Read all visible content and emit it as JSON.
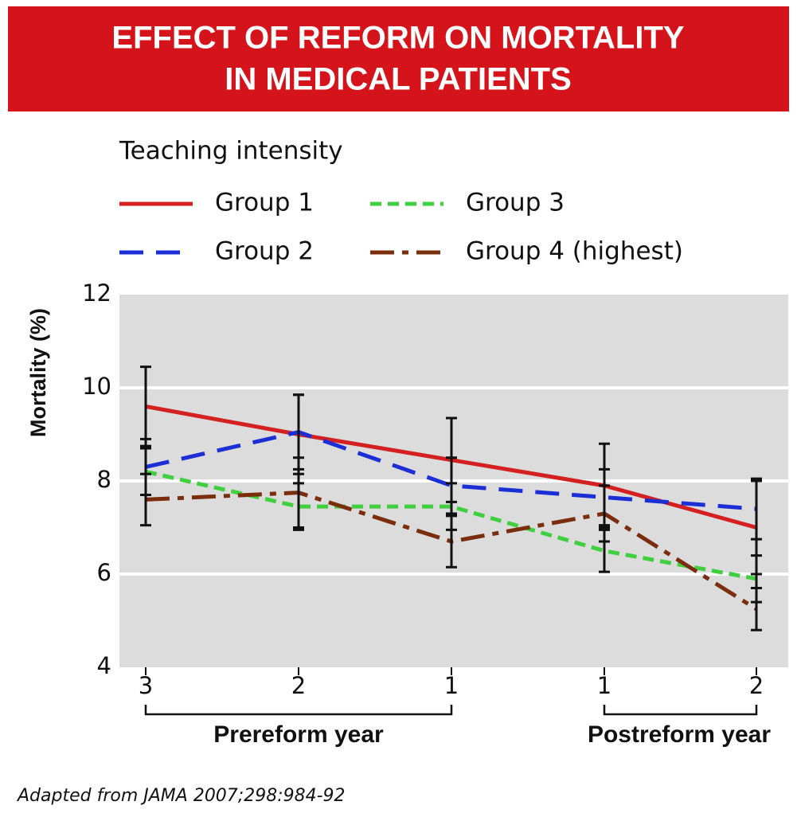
{
  "chart_data": {
    "type": "line",
    "title": [
      "EFFECT OF REFORM ON MORTALITY",
      "IN MEDICAL PATIENTS"
    ],
    "legend_title": "Teaching intensity",
    "y_label": "Mortality (%)",
    "categories": [
      "3",
      "2",
      "1",
      "1",
      "2"
    ],
    "x_groups": [
      "Prereform year",
      "Postreform year"
    ],
    "source": "Adapted from JAMA 2007;298:984-92",
    "ylim": [
      4,
      12
    ],
    "yticks": [
      4,
      6,
      8,
      10,
      12
    ],
    "grid": true,
    "series": [
      {
        "name": "Group 1",
        "color": "#d42020",
        "values": [
          9.6,
          9.0,
          8.45,
          7.9,
          7.0
        ],
        "errors": [
          0.85,
          0.85,
          0.9,
          0.9,
          1.0
        ]
      },
      {
        "name": "Group 2",
        "color": "#1c2fd6",
        "values": [
          8.3,
          9.05,
          7.9,
          7.65,
          7.4
        ],
        "errors": [
          0.6,
          0.8,
          0.6,
          0.6,
          0.65
        ]
      },
      {
        "name": "Group 3",
        "color": "#3fcf3f",
        "values": [
          8.2,
          7.45,
          7.45,
          6.5,
          5.9
        ],
        "errors": [
          0.5,
          0.5,
          0.5,
          0.45,
          0.5
        ]
      },
      {
        "name": "Group 4 (highest)",
        "color": "#7a2e0e",
        "values": [
          7.6,
          7.75,
          6.7,
          7.3,
          5.25
        ],
        "errors": [
          0.55,
          0.75,
          0.55,
          0.6,
          0.45
        ]
      }
    ]
  }
}
